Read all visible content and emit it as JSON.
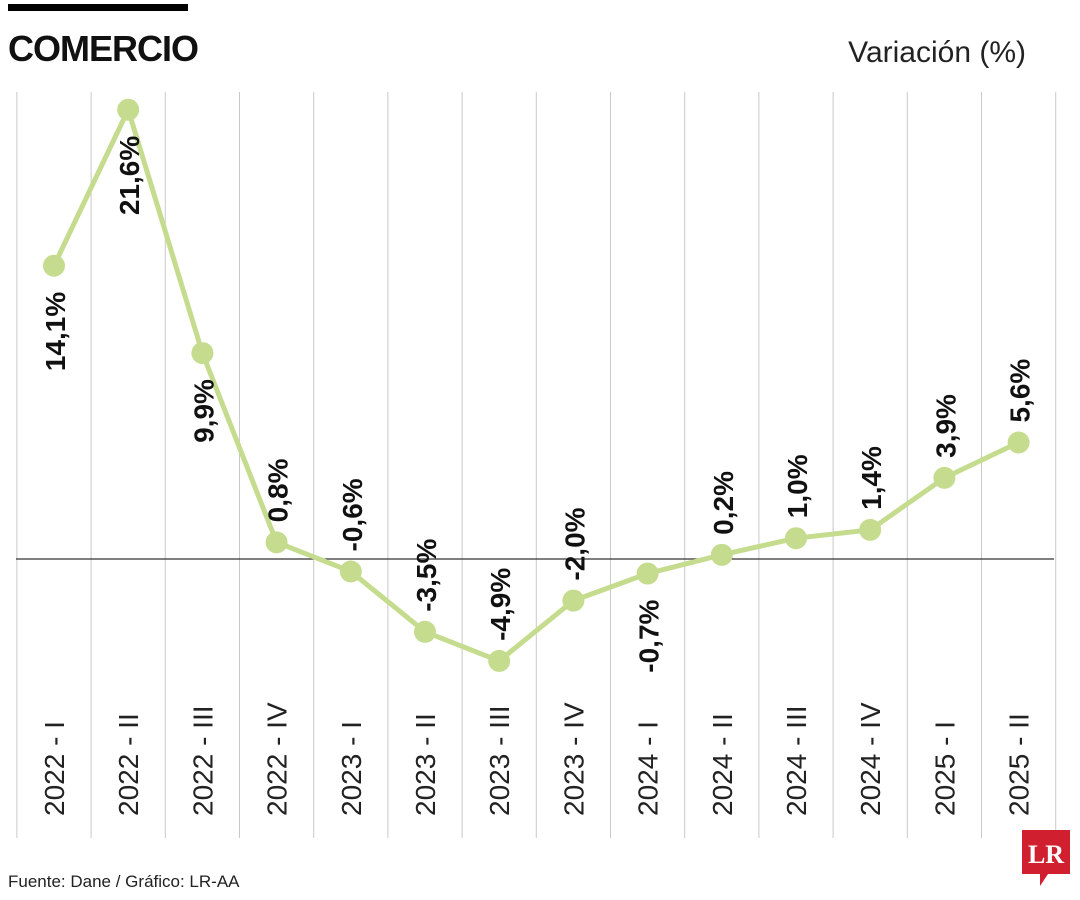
{
  "header": {
    "title": "COMERCIO",
    "unit_label": "Variación (%)"
  },
  "footer": {
    "source": "Fuente: Dane / Gráfico: LR-AA"
  },
  "logo": {
    "text": "LR",
    "color": "#d0202f"
  },
  "colors": {
    "line": "#c5dc8e",
    "marker": "#c5dc8e",
    "grid": "#c9c9c9",
    "zero_line": "#333333",
    "label": "#111111"
  },
  "chart_data": {
    "type": "line",
    "title": "COMERCIO",
    "ylabel": "Variación (%)",
    "categories": [
      "2022 - I",
      "2022 - II",
      "2022 - III",
      "2022 - IV",
      "2023 - I",
      "2023 - II",
      "2023 - III",
      "2023 - IV",
      "2024 - I",
      "2024 - II",
      "2024 - III",
      "2024 - IV",
      "2025 - I",
      "2025 - II"
    ],
    "values": [
      14.1,
      21.6,
      9.9,
      0.8,
      -0.6,
      -3.5,
      -4.9,
      -2.0,
      -0.7,
      0.2,
      1.0,
      1.4,
      3.9,
      5.6
    ],
    "data_labels": [
      "14,1%",
      "21,6%",
      "9,9%",
      "0,8%",
      "-0,6%",
      "-3,5%",
      "-4,9%",
      "-2,0%",
      "-0,7%",
      "0,2%",
      "1,0%",
      "1,4%",
      "3,9%",
      "5,6%"
    ],
    "label_position": [
      "below",
      "below",
      "below",
      "above",
      "above",
      "above",
      "above",
      "above",
      "below",
      "above",
      "above",
      "above",
      "above",
      "above"
    ],
    "grid": true,
    "legend": "none"
  }
}
